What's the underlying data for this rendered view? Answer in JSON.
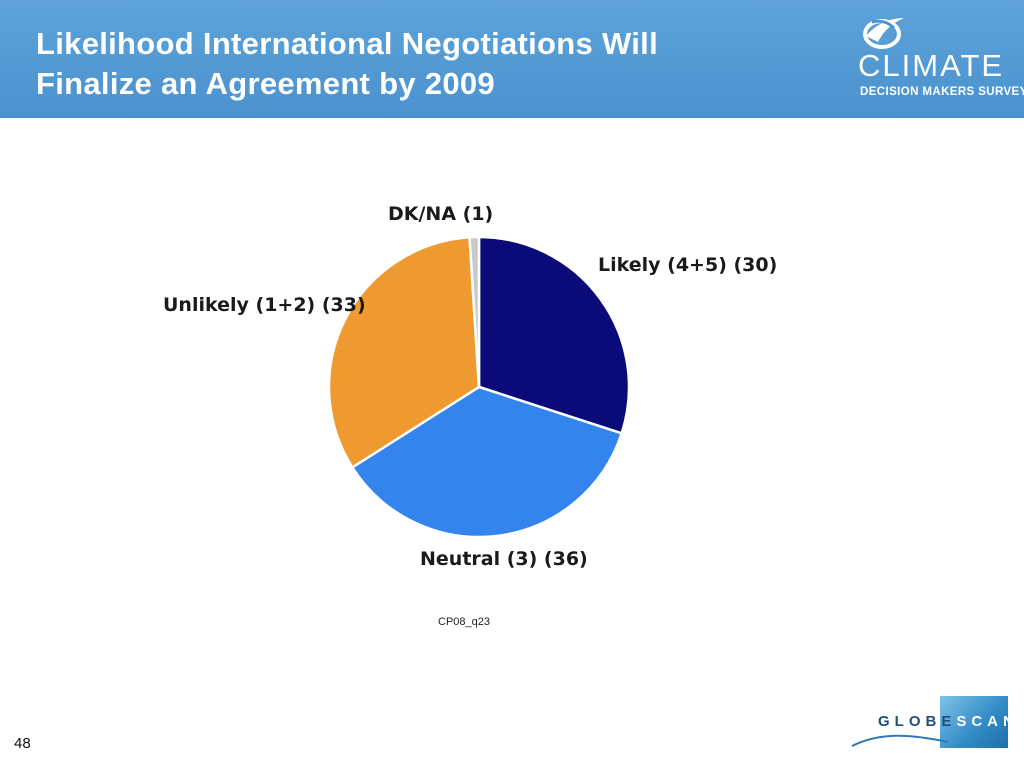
{
  "header": {
    "title_line1": "Likelihood International Negotiations Will",
    "title_line2": "Finalize an Agreement by 2009",
    "logo": {
      "icon": "bird-globe-icon",
      "word": "CLIMATE",
      "sub": "DECISION MAKERS SURVEY"
    }
  },
  "chart_data": {
    "type": "pie",
    "title": "",
    "slices": [
      {
        "label": "Likely (4+5) (30)",
        "value": 30,
        "color": "#0a0a78"
      },
      {
        "label": "Neutral (3) (36)",
        "value": 36,
        "color": "#3384ec"
      },
      {
        "label": "Unlikely (1+2) (33)",
        "value": 33,
        "color": "#ef9a30"
      },
      {
        "label": "DK/NA (1)",
        "value": 1,
        "color": "#c9c9c9"
      }
    ],
    "start": "12 o'clock",
    "direction": "clockwise",
    "legend": "none"
  },
  "source_code": "CP08_q23",
  "page_number": "48",
  "footer_logo": {
    "part1": "GLOBE",
    "part2": "SCAN"
  }
}
